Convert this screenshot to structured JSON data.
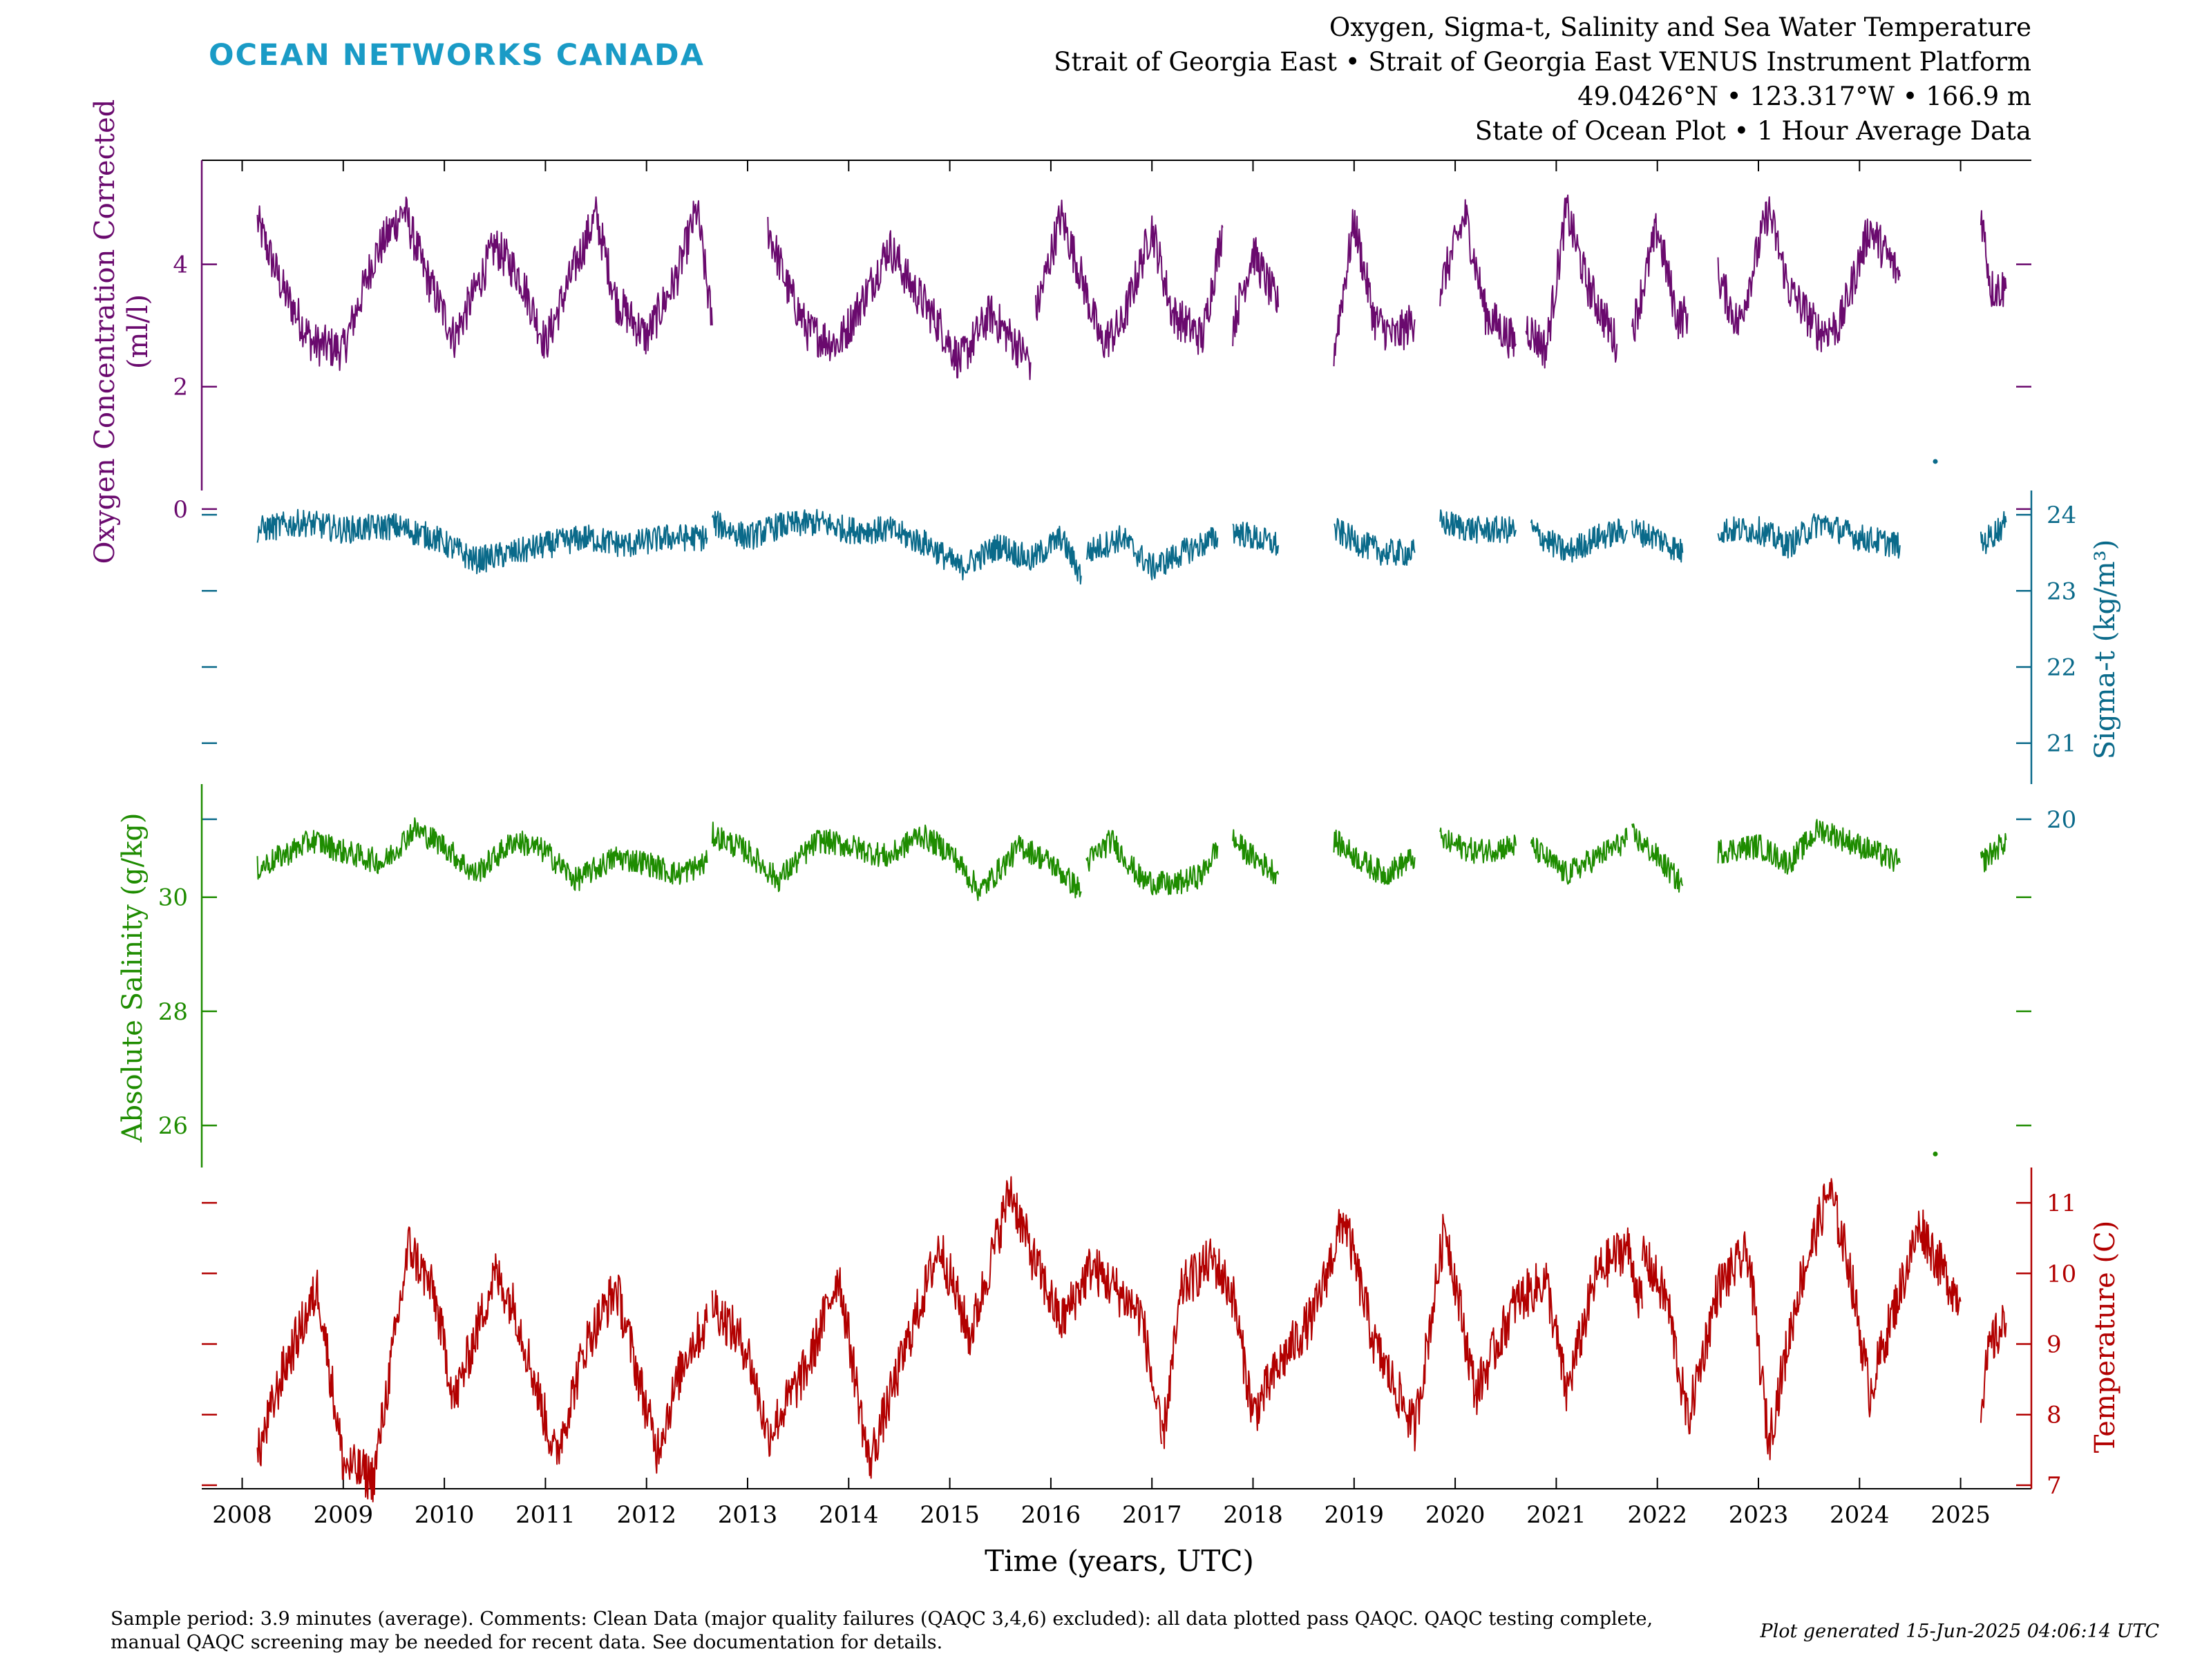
{
  "brand": {
    "name": "OCEAN NETWORKS CANADA",
    "color": "#1a9bc6"
  },
  "header": {
    "line1": "Oxygen, Sigma-t, Salinity and Sea Water Temperature",
    "line2": "Strait of Georgia East • Strait of Georgia East VENUS Instrument Platform",
    "line3": "49.0426°N • 123.317°W • 166.9 m",
    "line4": "State of Ocean Plot • 1 Hour Average Data"
  },
  "footer": {
    "comment_line1": "Sample period: 3.9 minutes (average). Comments: Clean Data (major quality failures (QAQC 3,4,6) excluded): all data plotted pass QAQC. QAQC testing complete,",
    "comment_line2": "manual QAQC screening may be needed for recent data. See documentation for details.",
    "generated": "Plot generated 15-Jun-2025 04:06:14 UTC"
  },
  "chart_data": {
    "type": "line",
    "xlabel": "Time (years, UTC)",
    "x_ticks": [
      "2008",
      "2009",
      "2010",
      "2011",
      "2012",
      "2013",
      "2014",
      "2015",
      "2016",
      "2017",
      "2018",
      "2019",
      "2020",
      "2021",
      "2022",
      "2023",
      "2024",
      "2025"
    ],
    "xlim": [
      2007.6,
      2025.7
    ],
    "grid": false,
    "series": [
      {
        "name": "Oxygen",
        "axis_label": "Oxygen Concentration Corrected (ml/l)",
        "axis_label_line1": "Oxygen Concentration Corrected",
        "axis_label_line2": "(ml/l)",
        "side": "left",
        "color": "#6a0a6e",
        "ticks": [
          "0",
          "2",
          "4"
        ],
        "tick_values": [
          0,
          2,
          4
        ],
        "ylim": [
          -0.6,
          5.7
        ],
        "segments": [
          {
            "x": [
              2008.15,
              2008.4,
              2008.7,
              2009.0,
              2009.3,
              2009.6,
              2009.8,
              2010.1,
              2010.5,
              2010.75,
              2011.0,
              2011.3,
              2011.5,
              2011.7,
              2012.0,
              2012.3,
              2012.5,
              2012.65
            ],
            "y": [
              4.7,
              3.6,
              2.7,
              2.6,
              4.1,
              4.9,
              3.9,
              2.8,
              4.3,
              3.8,
              2.7,
              4.0,
              4.8,
              3.4,
              2.8,
              3.8,
              4.9,
              3.0
            ]
          },
          {
            "x": [
              2013.2,
              2013.4,
              2013.6,
              2013.9,
              2014.2,
              2014.4,
              2014.6,
              2014.9,
              2015.1,
              2015.4,
              2015.7,
              2015.8
            ],
            "y": [
              4.6,
              3.6,
              2.9,
              2.7,
              3.6,
              4.3,
              3.7,
              3.0,
              2.4,
              3.2,
              2.6,
              2.4
            ]
          },
          {
            "x": [
              2015.85,
              2016.1,
              2016.3,
              2016.5,
              2016.7,
              2017.0,
              2017.2,
              2017.5,
              2017.7
            ],
            "y": [
              3.2,
              4.8,
              3.8,
              2.7,
              3.0,
              4.6,
              3.2,
              2.8,
              4.6
            ]
          },
          {
            "x": [
              2017.8,
              2018.0,
              2018.25
            ],
            "y": [
              3.0,
              4.2,
              3.3
            ]
          },
          {
            "x": [
              2018.8,
              2019.0,
              2019.2,
              2019.4,
              2019.6
            ],
            "y": [
              2.6,
              4.7,
              3.1,
              2.8,
              3.1
            ]
          },
          {
            "x": [
              2019.85,
              2020.1,
              2020.3,
              2020.6
            ],
            "y": [
              3.6,
              4.8,
              3.2,
              2.7
            ]
          },
          {
            "x": [
              2020.7,
              2020.9,
              2021.1,
              2021.3,
              2021.6
            ],
            "y": [
              3.0,
              2.6,
              4.9,
              3.7,
              2.7
            ]
          },
          {
            "x": [
              2021.75,
              2022.0,
              2022.2,
              2022.3
            ],
            "y": [
              2.9,
              4.6,
              3.1,
              3.2
            ]
          },
          {
            "x": [
              2022.6,
              2022.8,
              2023.1,
              2023.3,
              2023.6,
              2023.8,
              2024.1,
              2024.4
            ],
            "y": [
              3.8,
              3.0,
              4.9,
              3.6,
              2.9,
              3.0,
              4.6,
              3.8
            ]
          },
          {
            "x": [
              2025.2,
              2025.3,
              2025.45
            ],
            "y": [
              4.9,
              3.6,
              3.6
            ]
          }
        ]
      },
      {
        "name": "Sigma-t",
        "axis_label": "Sigma-t (kg/m³)",
        "side": "right",
        "color": "#0a6a8a",
        "ticks": [
          "20",
          "21",
          "22",
          "23",
          "24"
        ],
        "tick_values": [
          20,
          21,
          22,
          23,
          24
        ],
        "ylim": [
          19.6,
          24.5
        ],
        "segments": [
          {
            "x": [
              2008.15,
              2008.6,
              2009.0,
              2009.5,
              2009.9,
              2010.3,
              2010.7,
              2011.0,
              2011.4,
              2011.8,
              2012.2,
              2012.6
            ],
            "y": [
              23.8,
              23.9,
              23.8,
              23.85,
              23.7,
              23.4,
              23.5,
              23.6,
              23.7,
              23.6,
              23.7,
              23.7
            ]
          },
          {
            "x": [
              2012.65,
              2013.0,
              2013.3,
              2013.7,
              2014.0,
              2014.4,
              2014.8,
              2015.1,
              2015.5,
              2015.8,
              2016.1,
              2016.3
            ],
            "y": [
              23.9,
              23.7,
              23.85,
              23.9,
              23.8,
              23.8,
              23.6,
              23.3,
              23.6,
              23.4,
              23.7,
              23.2
            ]
          },
          {
            "x": [
              2016.35,
              2016.7,
              2017.0,
              2017.3,
              2017.65
            ],
            "y": [
              23.5,
              23.7,
              23.3,
              23.5,
              23.7
            ]
          },
          {
            "x": [
              2017.8,
              2018.0,
              2018.25
            ],
            "y": [
              23.8,
              23.7,
              23.6
            ]
          },
          {
            "x": [
              2018.8,
              2019.1,
              2019.3,
              2019.6
            ],
            "y": [
              23.8,
              23.6,
              23.5,
              23.5
            ]
          },
          {
            "x": [
              2019.85,
              2020.2,
              2020.6
            ],
            "y": [
              23.9,
              23.8,
              23.8
            ]
          },
          {
            "x": [
              2020.75,
              2021.1,
              2021.4,
              2021.7
            ],
            "y": [
              23.8,
              23.5,
              23.7,
              23.8
            ]
          },
          {
            "x": [
              2021.75,
              2022.0,
              2022.25
            ],
            "y": [
              23.8,
              23.7,
              23.5
            ]
          },
          {
            "x": [
              2022.6,
              2023.0,
              2023.3,
              2023.6,
              2024.0,
              2024.4
            ],
            "y": [
              23.8,
              23.8,
              23.6,
              23.9,
              23.7,
              23.6
            ]
          },
          {
            "x": [
              2024.75
            ],
            "y": [
              24.7
            ]
          },
          {
            "x": [
              2025.2,
              2025.45
            ],
            "y": [
              23.6,
              23.9
            ]
          }
        ]
      },
      {
        "name": "Absolute Salinity",
        "axis_label": "Absolute Salinity (g/kg)",
        "side": "left",
        "color": "#1e8c00",
        "ticks": [
          "26",
          "28",
          "30"
        ],
        "tick_values": [
          26,
          28,
          30
        ],
        "ylim": [
          24.9,
          31.8
        ],
        "segments": [
          {
            "x": [
              2008.15,
              2008.7,
              2009.0,
              2009.4,
              2009.7,
              2010.0,
              2010.3,
              2010.7,
              2011.0,
              2011.3,
              2011.7,
              2012.0,
              2012.3,
              2012.6
            ],
            "y": [
              30.5,
              31.0,
              30.8,
              30.6,
              31.2,
              30.9,
              30.4,
              31.0,
              30.8,
              30.3,
              30.7,
              30.6,
              30.4,
              30.6
            ]
          },
          {
            "x": [
              2012.65,
              2013.0,
              2013.3,
              2013.7,
              2014.0,
              2014.4,
              2014.7,
              2015.0,
              2015.3,
              2015.7,
              2016.0,
              2016.3
            ],
            "y": [
              31.1,
              30.8,
              30.3,
              31.0,
              30.9,
              30.7,
              31.1,
              30.8,
              30.1,
              30.9,
              30.6,
              30.1
            ]
          },
          {
            "x": [
              2016.35,
              2016.6,
              2016.9,
              2017.2,
              2017.5,
              2017.65
            ],
            "y": [
              30.6,
              31.0,
              30.3,
              30.2,
              30.4,
              30.9
            ]
          },
          {
            "x": [
              2017.8,
              2018.0,
              2018.25
            ],
            "y": [
              31.0,
              30.7,
              30.4
            ]
          },
          {
            "x": [
              2018.8,
              2019.1,
              2019.3,
              2019.6
            ],
            "y": [
              31.0,
              30.6,
              30.4,
              30.7
            ]
          },
          {
            "x": [
              2019.85,
              2020.2,
              2020.6
            ],
            "y": [
              31.0,
              30.8,
              30.9
            ]
          },
          {
            "x": [
              2020.75,
              2021.1,
              2021.4,
              2021.7
            ],
            "y": [
              30.9,
              30.4,
              30.7,
              31.0
            ]
          },
          {
            "x": [
              2021.75,
              2022.0,
              2022.25
            ],
            "y": [
              31.1,
              30.7,
              30.2
            ]
          },
          {
            "x": [
              2022.6,
              2023.0,
              2023.3,
              2023.6,
              2024.0,
              2024.4
            ],
            "y": [
              30.8,
              30.9,
              30.6,
              31.2,
              30.9,
              30.6
            ]
          },
          {
            "x": [
              2024.75
            ],
            "y": [
              25.5
            ]
          },
          {
            "x": [
              2025.2,
              2025.45
            ],
            "y": [
              30.6,
              31.0
            ]
          }
        ]
      },
      {
        "name": "Temperature",
        "axis_label": "Temperature (C)",
        "side": "right",
        "color": "#b20000",
        "ticks": [
          "7",
          "8",
          "9",
          "10",
          "11"
        ],
        "tick_values": [
          7,
          8,
          9,
          10,
          11
        ],
        "ylim": [
          6.95,
          11.5
        ],
        "segments": [
          {
            "x": [
              2008.15,
              2008.4,
              2008.75,
              2009.0,
              2009.3,
              2009.65,
              2009.9,
              2010.1,
              2010.5,
              2010.7,
              2011.1,
              2011.4,
              2011.7,
              2012.1,
              2012.4,
              2012.6
            ],
            "y": [
              7.4,
              8.6,
              9.8,
              7.3,
              7.1,
              10.4,
              9.7,
              8.2,
              10.0,
              9.5,
              7.4,
              9.0,
              9.8,
              7.5,
              8.9,
              9.3
            ]
          },
          {
            "x": [
              2012.65,
              2013.0,
              2013.2,
              2013.6,
              2013.9,
              2014.2,
              2014.6,
              2014.9,
              2015.2,
              2015.6,
              2015.8,
              2016.1,
              2016.4,
              2016.7,
              2016.9,
              2017.1
            ],
            "y": [
              9.6,
              8.9,
              7.7,
              8.7,
              10.0,
              7.3,
              9.1,
              10.4,
              9.1,
              11.2,
              10.3,
              9.3,
              10.1,
              9.7,
              9.4,
              7.6
            ]
          },
          {
            "x": [
              2017.1,
              2017.3,
              2017.6,
              2017.8,
              2018.0,
              2018.3,
              2018.6,
              2018.9,
              2019.2,
              2019.6,
              2019.9,
              2020.2,
              2020.6,
              2020.9,
              2021.1,
              2021.4,
              2021.7,
              2021.85
            ],
            "y": [
              7.6,
              9.8,
              10.2,
              9.7,
              8.0,
              8.8,
              9.4,
              10.8,
              9.0,
              7.8,
              10.7,
              8.3,
              9.6,
              9.9,
              8.3,
              10.0,
              10.4,
              9.5
            ]
          },
          {
            "x": [
              2021.85,
              2022.1,
              2022.3,
              2022.6,
              2022.9,
              2023.1,
              2023.4,
              2023.7,
              2023.9,
              2024.1,
              2024.3,
              2024.6,
              2024.8,
              2025.0
            ],
            "y": [
              10.3,
              9.6,
              7.9,
              9.8,
              10.3,
              7.6,
              9.8,
              11.2,
              10.1,
              8.3,
              9.3,
              10.7,
              10.1,
              9.6
            ]
          },
          {
            "x": [
              2025.2,
              2025.3,
              2025.45
            ],
            "y": [
              8.2,
              9.0,
              9.3
            ]
          }
        ]
      }
    ]
  }
}
